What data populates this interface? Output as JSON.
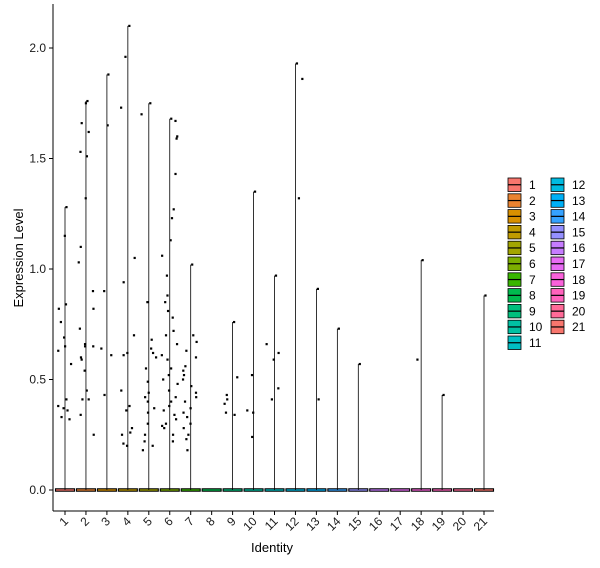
{
  "chart_data": {
    "type": "violin",
    "xlabel": "Identity",
    "ylabel": "Expression Level",
    "ylim": [
      -0.1,
      2.18
    ],
    "yticks": [
      "0.0",
      "0.5",
      "1.0",
      "1.5",
      "2.0"
    ],
    "ytick_values": [
      0,
      0.5,
      1.0,
      1.5,
      2.0
    ],
    "categories": [
      "1",
      "2",
      "3",
      "4",
      "5",
      "6",
      "7",
      "8",
      "9",
      "10",
      "11",
      "12",
      "13",
      "14",
      "15",
      "16",
      "17",
      "18",
      "19",
      "20",
      "21"
    ],
    "series": [
      {
        "name": "1",
        "color": "#F8766D",
        "max": 1.28,
        "points": [
          1.28,
          1.15,
          0.84,
          0.82,
          0.76,
          0.69,
          0.65,
          0.63,
          0.57,
          0.41,
          0.37,
          0.33,
          0.32,
          0.36,
          0.38
        ]
      },
      {
        "name": "2",
        "color": "#EA8331",
        "max": 1.76,
        "points": [
          1.76,
          1.75,
          1.66,
          1.62,
          1.53,
          1.51,
          1.32,
          1.1,
          1.03,
          0.9,
          0.82,
          0.73,
          0.66,
          0.65,
          0.6,
          0.54,
          0.45,
          0.41,
          0.41,
          0.34,
          0.25,
          0.65,
          0.59
        ]
      },
      {
        "name": "3",
        "color": "#D89000",
        "max": 1.88,
        "points": [
          1.88,
          1.65,
          0.9,
          0.64,
          0.61,
          0.43
        ]
      },
      {
        "name": "4",
        "color": "#C09B00",
        "max": 2.1,
        "points": [
          2.1,
          1.96,
          1.73,
          1.05,
          0.94,
          0.7,
          0.62,
          0.61,
          0.38,
          0.36,
          0.28,
          0.26,
          0.25,
          0.21,
          0.2,
          0.45
        ]
      },
      {
        "name": "5",
        "color": "#A3A500",
        "max": 1.75,
        "points": [
          1.75,
          1.7,
          0.85,
          0.68,
          0.64,
          0.6,
          0.55,
          0.49,
          0.44,
          0.4,
          0.37,
          0.35,
          0.3,
          0.25,
          0.22,
          0.2,
          0.18,
          0.42,
          0.62
        ]
      },
      {
        "name": "6",
        "color": "#7CAE00",
        "max": 1.68,
        "points": [
          1.68,
          1.67,
          1.6,
          1.59,
          1.43,
          1.27,
          1.23,
          1.13,
          1.06,
          0.97,
          0.88,
          0.85,
          0.81,
          0.78,
          0.72,
          0.7,
          0.66,
          0.61,
          0.59,
          0.55,
          0.52,
          0.5,
          0.48,
          0.45,
          0.42,
          0.4,
          0.38,
          0.36,
          0.34,
          0.32,
          0.3,
          0.29,
          0.28,
          0.25,
          0.22
        ]
      },
      {
        "name": "7",
        "color": "#39B600",
        "max": 1.02,
        "points": [
          1.02,
          0.7,
          0.67,
          0.63,
          0.6,
          0.56,
          0.54,
          0.52,
          0.5,
          0.47,
          0.44,
          0.42,
          0.4,
          0.37,
          0.35,
          0.33,
          0.3,
          0.28,
          0.25,
          0.23,
          0.18
        ]
      },
      {
        "name": "8",
        "color": "#00BB4E",
        "max": 0,
        "points": []
      },
      {
        "name": "9",
        "color": "#00BF7D",
        "max": 0.76,
        "points": [
          0.76,
          0.51,
          0.43,
          0.41,
          0.39,
          0.34,
          0.35
        ]
      },
      {
        "name": "10",
        "color": "#00C1A3",
        "max": 1.35,
        "points": [
          1.35,
          0.52,
          0.36,
          0.35,
          0.24
        ]
      },
      {
        "name": "11",
        "color": "#00BFC4",
        "max": 0.97,
        "points": [
          0.97,
          0.66,
          0.62,
          0.59,
          0.46,
          0.41
        ]
      },
      {
        "name": "12",
        "color": "#00BAE0",
        "max": 1.93,
        "points": [
          1.93,
          1.86,
          1.32
        ]
      },
      {
        "name": "13",
        "color": "#00B0F6",
        "max": 0.91,
        "points": [
          0.91,
          0.41
        ]
      },
      {
        "name": "14",
        "color": "#35A2FF",
        "max": 0.73,
        "points": [
          0.73
        ]
      },
      {
        "name": "15",
        "color": "#9590FF",
        "max": 0.57,
        "points": [
          0.57
        ]
      },
      {
        "name": "16",
        "color": "#C77CFF",
        "max": 0,
        "points": []
      },
      {
        "name": "17",
        "color": "#E76BF3",
        "max": 0,
        "points": []
      },
      {
        "name": "18",
        "color": "#FA62DB",
        "max": 1.04,
        "points": [
          1.04,
          0.59
        ]
      },
      {
        "name": "19",
        "color": "#FF62BC",
        "max": 0.43,
        "points": [
          0.43
        ]
      },
      {
        "name": "20",
        "color": "#FF6A98",
        "max": 0,
        "points": []
      },
      {
        "name": "21",
        "color": "#F8766D",
        "max": 0.88,
        "points": [
          0.88
        ]
      }
    ],
    "legend": {
      "placement": "right",
      "columns": 2
    },
    "grid": false
  }
}
